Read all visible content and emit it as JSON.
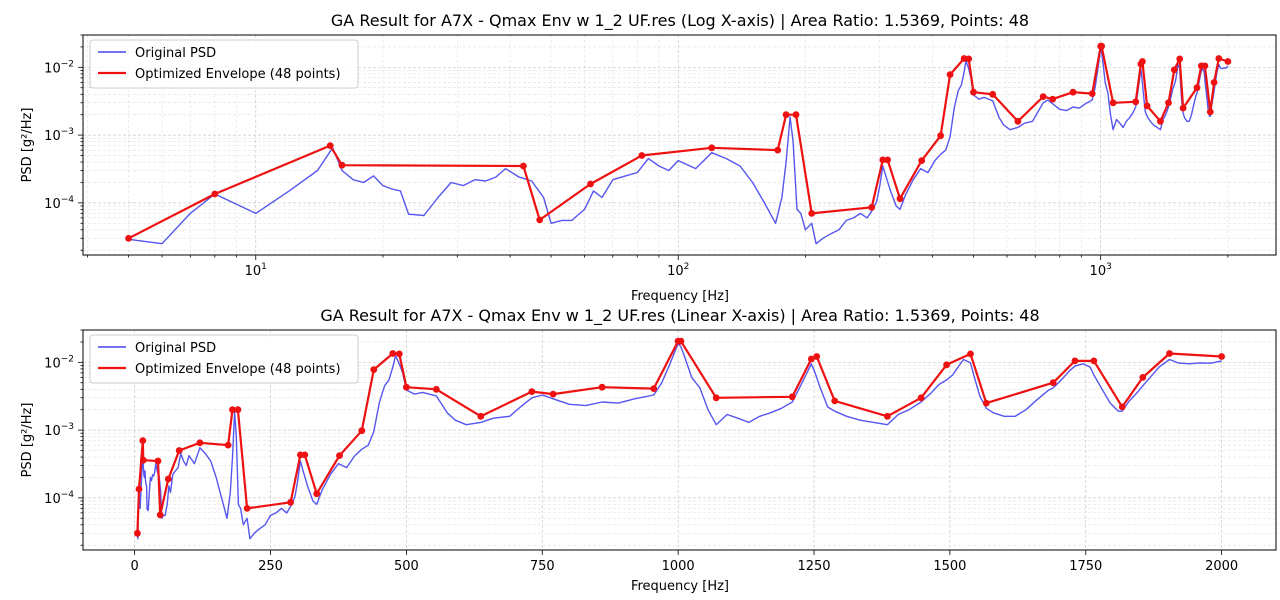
{
  "colors": {
    "psd": "#4444ee",
    "envelope": "#ee1111",
    "grid": "#b0b0b0",
    "axis": "#000000"
  },
  "legend": {
    "psd_label": "Original PSD",
    "envelope_label": "Optimized Envelope (48 points)"
  },
  "chart_data": [
    {
      "type": "line",
      "title": "GA Result for A7X - Qmax Env w 1_2 UF.res (Log X-axis) | Area Ratio: 1.5369, Points: 48",
      "xlabel": "Frequency [Hz]",
      "ylabel": "PSD [g²/Hz]",
      "xscale": "log",
      "yscale": "log",
      "xlim": [
        3.9,
        2600
      ],
      "ylim": [
        1.7e-05,
        0.03
      ],
      "xticks": [
        {
          "value": 10,
          "base": "10",
          "exp": "1"
        },
        {
          "value": 100,
          "base": "10",
          "exp": "2"
        },
        {
          "value": 1000,
          "base": "10",
          "exp": "3"
        }
      ],
      "yticks": [
        {
          "value": 0.0001,
          "base": "10",
          "exp": "−4"
        },
        {
          "value": 0.001,
          "base": "10",
          "exp": "−3"
        },
        {
          "value": 0.01,
          "base": "10",
          "exp": "−2"
        }
      ],
      "grid": true,
      "legend_position": "upper left"
    },
    {
      "type": "line",
      "title": "GA Result for A7X - Qmax Env w 1_2 UF.res (Linear X-axis) | Area Ratio: 1.5369, Points: 48",
      "xlabel": "Frequency [Hz]",
      "ylabel": "PSD [g²/Hz]",
      "xscale": "linear",
      "yscale": "log",
      "xlim": [
        -95,
        2100
      ],
      "ylim": [
        1.7e-05,
        0.03
      ],
      "xticks": [
        {
          "value": 0,
          "label": "0"
        },
        {
          "value": 250,
          "label": "250"
        },
        {
          "value": 500,
          "label": "500"
        },
        {
          "value": 750,
          "label": "750"
        },
        {
          "value": 1000,
          "label": "1000"
        },
        {
          "value": 1250,
          "label": "1250"
        },
        {
          "value": 1500,
          "label": "1500"
        },
        {
          "value": 1750,
          "label": "1750"
        },
        {
          "value": 2000,
          "label": "2000"
        }
      ],
      "yticks": [
        {
          "value": 0.0001,
          "base": "10",
          "exp": "−4"
        },
        {
          "value": 0.001,
          "base": "10",
          "exp": "−3"
        },
        {
          "value": 0.01,
          "base": "10",
          "exp": "−2"
        }
      ],
      "grid": true,
      "legend_position": "upper left"
    }
  ],
  "series": {
    "envelope": {
      "name": "Optimized Envelope (48 points)",
      "x": [
        5,
        8,
        15,
        16,
        43,
        47,
        62,
        82,
        120,
        172,
        180,
        190,
        207,
        287,
        305,
        313,
        335,
        377,
        418,
        440,
        475,
        487,
        500,
        555,
        637,
        731,
        770,
        860,
        955,
        1000,
        1005,
        1070,
        1210,
        1245,
        1255,
        1288,
        1385,
        1447,
        1494,
        1538,
        1567,
        1690,
        1730,
        1765,
        1817,
        1855,
        1904,
        2000
      ],
      "y": [
        3e-05,
        0.000135,
        0.0007,
        0.00036,
        0.00035,
        5.6e-05,
        0.00019,
        0.0005,
        0.00065,
        0.0006,
        0.002,
        0.002,
        7e-05,
        8.6e-05,
        0.00043,
        0.00043,
        0.000115,
        0.00042,
        0.00098,
        0.0078,
        0.0135,
        0.0133,
        0.0043,
        0.004,
        0.0016,
        0.0037,
        0.0034,
        0.0043,
        0.0041,
        0.0205,
        0.0205,
        0.003,
        0.0031,
        0.0112,
        0.0122,
        0.0027,
        0.0016,
        0.003,
        0.0092,
        0.0133,
        0.0025,
        0.005,
        0.0105,
        0.0105,
        0.0022,
        0.006,
        0.0135,
        0.0122
      ]
    },
    "psd": {
      "name": "Original PSD",
      "x": [
        5,
        6,
        7,
        8,
        10,
        12,
        14,
        15.2,
        16,
        17,
        18,
        19,
        20,
        21,
        22,
        23,
        25,
        27,
        29,
        31,
        33,
        35,
        37,
        39,
        42,
        45,
        48,
        50,
        53,
        56,
        60,
        63,
        66,
        70,
        75,
        80,
        85,
        90,
        95,
        100,
        110,
        120,
        130,
        140,
        150,
        160,
        170,
        176,
        180,
        184,
        187,
        191,
        195,
        200,
        207,
        212,
        220,
        230,
        240,
        250,
        260,
        270,
        280,
        287,
        295,
        300,
        305,
        310,
        318,
        328,
        335,
        345,
        360,
        375,
        390,
        405,
        418,
        430,
        440,
        450,
        460,
        468,
        475,
        480,
        487,
        493,
        500,
        515,
        530,
        555,
        575,
        590,
        610,
        637,
        660,
        690,
        710,
        731,
        750,
        770,
        800,
        830,
        860,
        890,
        920,
        955,
        970,
        985,
        1000,
        1005,
        1012,
        1025,
        1040,
        1055,
        1070,
        1090,
        1110,
        1130,
        1150,
        1170,
        1190,
        1210,
        1222,
        1235,
        1245,
        1252,
        1260,
        1275,
        1288,
        1310,
        1335,
        1360,
        1385,
        1405,
        1425,
        1447,
        1465,
        1480,
        1494,
        1505,
        1515,
        1525,
        1538,
        1545,
        1555,
        1567,
        1580,
        1600,
        1620,
        1640,
        1660,
        1680,
        1690,
        1705,
        1720,
        1730,
        1745,
        1758,
        1765,
        1780,
        1795,
        1810,
        1817,
        1830,
        1845,
        1855,
        1870,
        1885,
        1904,
        1920,
        1940,
        1960,
        1980,
        2000
      ],
      "y": [
        2.9e-05,
        2.5e-05,
        7e-05,
        0.000135,
        7e-05,
        0.00015,
        0.0003,
        0.00065,
        0.0003,
        0.00022,
        0.0002,
        0.00025,
        0.00018,
        0.00016,
        0.00015,
        6.8e-05,
        6.5e-05,
        0.00012,
        0.0002,
        0.00018,
        0.00022,
        0.00021,
        0.00024,
        0.00032,
        0.00024,
        0.00021,
        0.00012,
        5e-05,
        5.5e-05,
        5.5e-05,
        8e-05,
        0.00015,
        0.00012,
        0.00022,
        0.00025,
        0.00028,
        0.00045,
        0.00035,
        0.0003,
        0.00042,
        0.00032,
        0.00055,
        0.00045,
        0.00035,
        0.0002,
        0.0001,
        5e-05,
        0.00012,
        0.0004,
        0.00185,
        0.0008,
        8e-05,
        7e-05,
        4e-05,
        5e-05,
        2.5e-05,
        3e-05,
        3.5e-05,
        4e-05,
        5.5e-05,
        6e-05,
        7e-05,
        6e-05,
        7.5e-05,
        0.000105,
        0.00018,
        0.00035,
        0.00025,
        0.00015,
        9e-05,
        8e-05,
        0.00013,
        0.00022,
        0.00032,
        0.00028,
        0.00042,
        0.00052,
        0.0006,
        0.00095,
        0.0025,
        0.0045,
        0.0055,
        0.0085,
        0.0125,
        0.0095,
        0.007,
        0.0039,
        0.0034,
        0.0036,
        0.0032,
        0.0018,
        0.0014,
        0.0012,
        0.0013,
        0.0015,
        0.0016,
        0.0022,
        0.003,
        0.0033,
        0.0029,
        0.0024,
        0.0023,
        0.0026,
        0.0025,
        0.0029,
        0.0033,
        0.005,
        0.0095,
        0.019,
        0.017,
        0.012,
        0.006,
        0.0042,
        0.002,
        0.0012,
        0.0017,
        0.0015,
        0.0013,
        0.0016,
        0.0018,
        0.0021,
        0.0026,
        0.004,
        0.0065,
        0.0095,
        0.007,
        0.0045,
        0.0022,
        0.0019,
        0.0016,
        0.0014,
        0.0013,
        0.0012,
        0.0017,
        0.002,
        0.0026,
        0.0035,
        0.0047,
        0.0055,
        0.0065,
        0.0085,
        0.011,
        0.0098,
        0.006,
        0.0032,
        0.0021,
        0.0018,
        0.0016,
        0.0016,
        0.002,
        0.0028,
        0.0038,
        0.0042,
        0.0055,
        0.0075,
        0.0088,
        0.0095,
        0.0085,
        0.0065,
        0.004,
        0.0025,
        0.0019,
        0.0019,
        0.0027,
        0.0036,
        0.0045,
        0.0062,
        0.0085,
        0.011,
        0.0098,
        0.0095,
        0.0098,
        0.0097,
        0.0105
      ]
    }
  }
}
